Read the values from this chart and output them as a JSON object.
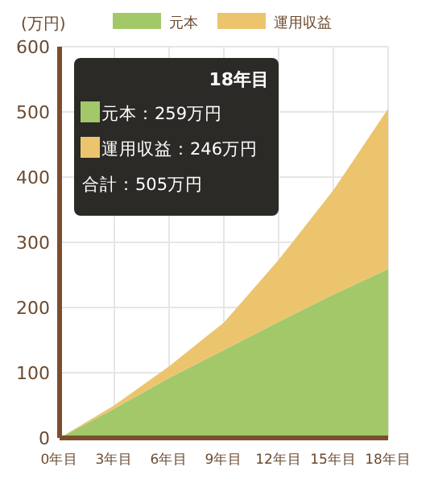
{
  "chart_data": {
    "type": "area",
    "stacked": true,
    "ylabel": "(万円)",
    "x": [
      0,
      3,
      6,
      9,
      12,
      15,
      18
    ],
    "series": [
      {
        "name": "元本",
        "color": "#a3c86a",
        "values": [
          0,
          45,
          92,
          135,
          178,
          220,
          259
        ]
      },
      {
        "name": "運用収益",
        "color": "#ecc46e",
        "values": [
          0,
          5,
          18,
          42,
          95,
          160,
          246
        ]
      }
    ],
    "xlim": [
      0,
      18
    ],
    "xticks": [
      {
        "value": 0,
        "label": "0年目"
      },
      {
        "value": 3,
        "label": "3年目"
      },
      {
        "value": 6,
        "label": "6年目"
      },
      {
        "value": 9,
        "label": "9年目"
      },
      {
        "value": 12,
        "label": "12年目"
      },
      {
        "value": 15,
        "label": "15年目"
      },
      {
        "value": 18,
        "label": "18年目"
      }
    ],
    "ylim": [
      0,
      600
    ],
    "yticks": [
      0,
      100,
      200,
      300,
      400,
      500,
      600
    ],
    "grid": true,
    "legend": "top",
    "annotations": [
      "18年目",
      "元本：259万円",
      "運用収益：246万円",
      "合計：505万円"
    ]
  }
}
